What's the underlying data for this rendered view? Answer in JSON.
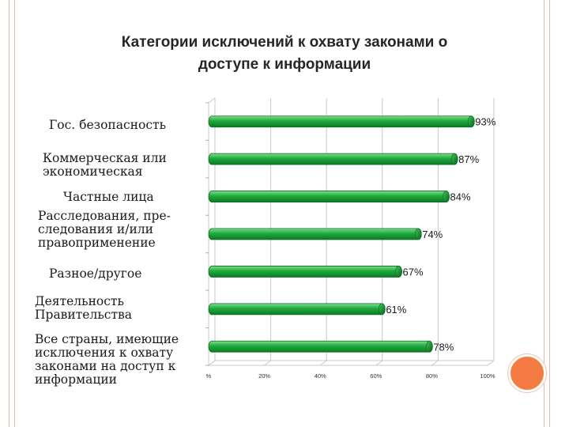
{
  "slide": {
    "title_line1": "Категории исключений к охвату законами о",
    "title_line2": "доступе к информации"
  },
  "chart_data": {
    "type": "bar",
    "orientation": "horizontal",
    "title": "Категории исключений к охвату законами о доступе к информации",
    "categories": [
      "Гос. безопасность",
      "Коммерческая или\nэкономическая",
      "Частные лица",
      "Расследования, пре-\nследования и/или\nправоприменение",
      "Разное/другое",
      "Деятельность\nПравительства",
      "Все страны, имеющие\nисключения к охвату\nзаконами на доступ к\nинформации"
    ],
    "values": [
      93,
      87,
      84,
      74,
      67,
      61,
      78
    ],
    "value_labels": [
      "93%",
      "87%",
      "84%",
      "74%",
      "67%",
      "61%",
      "78%"
    ],
    "xlim": [
      0,
      100
    ],
    "x_ticks": [
      "%",
      "20%",
      "40%",
      "60%",
      "80%",
      "100%"
    ],
    "x_tick_values": [
      0,
      20,
      40,
      60,
      80,
      100
    ],
    "grid": true,
    "legend": "none",
    "bar_color": "#1faa3c"
  }
}
